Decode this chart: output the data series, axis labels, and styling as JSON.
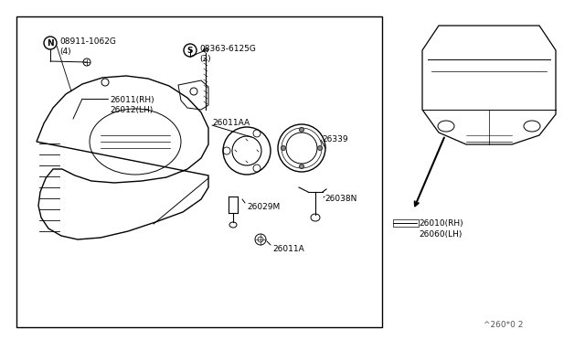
{
  "bg_color": "#ffffff",
  "lc": "#000000",
  "footer": "^260*0 2",
  "labels": {
    "N_id": "08911-1062G",
    "N_qty": "(4)",
    "S_id": "08363-6125G",
    "S_qty": "(2)",
    "p26011AA": "26011AA",
    "p26339": "26339",
    "p26029M": "26029M",
    "p26038N": "26038N",
    "p26011A": "26011A",
    "p26011RH": "26011(RH)",
    "p26012LH": "26012(LH)",
    "p26010RH": "26010(RH)",
    "p26060LH": "26060(LH)"
  }
}
